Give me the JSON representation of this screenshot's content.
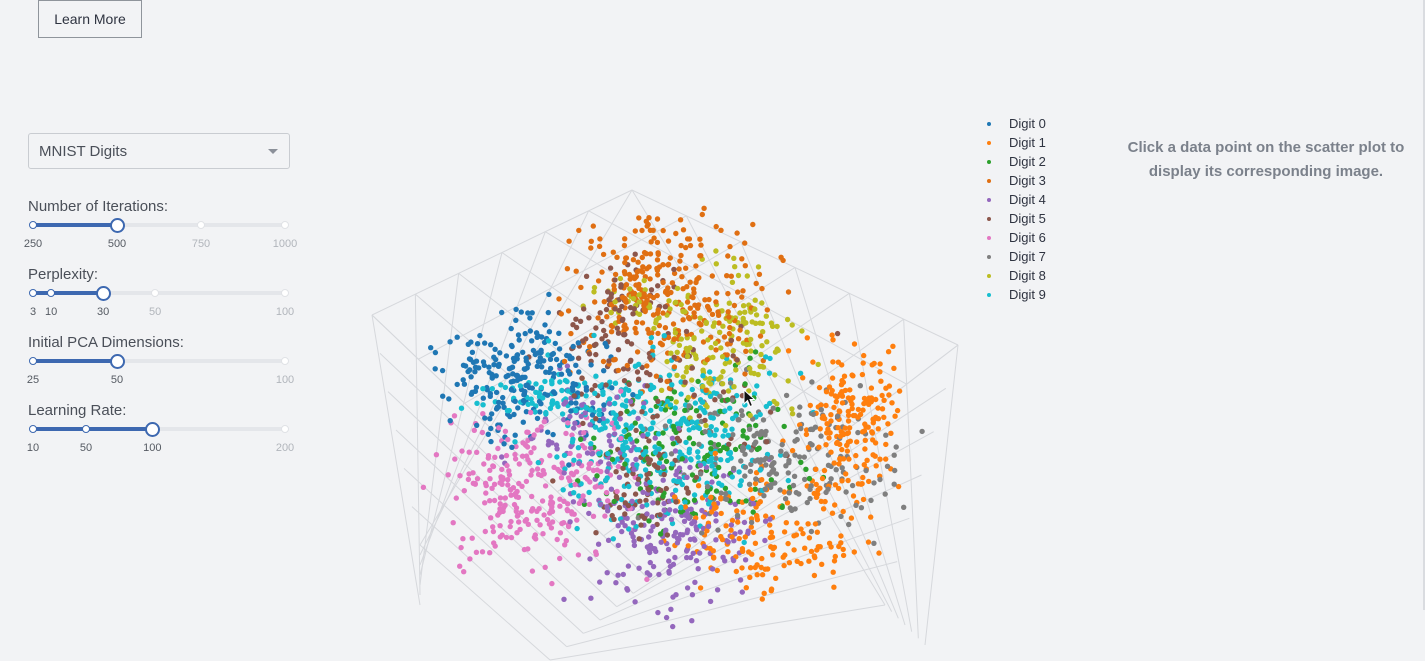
{
  "header": {
    "learn_more_label": "Learn More"
  },
  "controls": {
    "dataset": {
      "selected": "MNIST Digits"
    },
    "sliders": [
      {
        "label": "Number of Iterations:",
        "min": 250,
        "max": 1000,
        "value": 500,
        "marks": [
          250,
          500,
          750,
          1000
        ]
      },
      {
        "label": "Perplexity:",
        "min": 3,
        "max": 100,
        "value": 30,
        "marks": [
          3,
          10,
          30,
          50,
          100
        ]
      },
      {
        "label": "Initial PCA Dimensions:",
        "min": 25,
        "max": 100,
        "value": 50,
        "marks": [
          25,
          50,
          100
        ]
      },
      {
        "label": "Learning Rate:",
        "min": 10,
        "max": 200,
        "value": 100,
        "marks": [
          10,
          50,
          100,
          200
        ]
      }
    ]
  },
  "plot": {
    "legend": [
      {
        "name": "Digit 0",
        "color": "#1f77b4"
      },
      {
        "name": "Digit 1",
        "color": "#ff7f0e"
      },
      {
        "name": "Digit 2",
        "color": "#2ca02c"
      },
      {
        "name": "Digit 3",
        "color": "#e06f12"
      },
      {
        "name": "Digit 4",
        "color": "#9467bd"
      },
      {
        "name": "Digit 5",
        "color": "#8c564b"
      },
      {
        "name": "Digit 6",
        "color": "#e377c2"
      },
      {
        "name": "Digit 7",
        "color": "#7f7f7f"
      },
      {
        "name": "Digit 8",
        "color": "#bcbd22"
      },
      {
        "name": "Digit 9",
        "color": "#17becf"
      }
    ]
  },
  "image_panel": {
    "hint": "Click a data point on the scatter plot to display its corresponding image."
  }
}
